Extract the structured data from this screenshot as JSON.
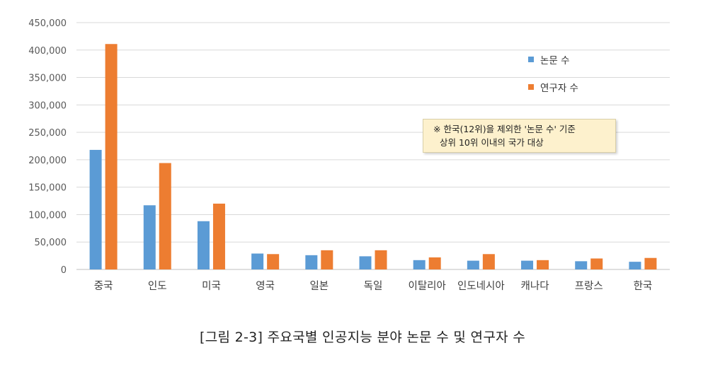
{
  "chart_data": {
    "type": "bar",
    "categories": [
      "중국",
      "인도",
      "미국",
      "영국",
      "일본",
      "독일",
      "이탈리아",
      "인도네시아",
      "캐나다",
      "프랑스",
      "한국"
    ],
    "series": [
      {
        "name": "논문 수",
        "color": "#5b9bd5",
        "values": [
          218000,
          117000,
          88000,
          29000,
          26000,
          24000,
          17000,
          16000,
          16000,
          15000,
          14000
        ]
      },
      {
        "name": "연구자 수",
        "color": "#ed7d31",
        "values": [
          411000,
          194000,
          120000,
          28000,
          35000,
          35000,
          22000,
          28000,
          17000,
          20000,
          21000
        ]
      }
    ],
    "ylim": [
      0,
      450000
    ],
    "y_ticks": [
      "0",
      "50,000",
      "100,000",
      "150,000",
      "200,000",
      "250,000",
      "300,000",
      "350,000",
      "400,000",
      "450,000"
    ],
    "grid": true,
    "legend_position": "top-right",
    "annotation": {
      "line1": "※ 한국(12위)을 제외한 '논문 수' 기준",
      "line2": "상위 10위 이내의 국가 대상"
    },
    "caption": "[그림 2-3] 주요국별 인공지능 분야 논문 수 및 연구자 수"
  }
}
